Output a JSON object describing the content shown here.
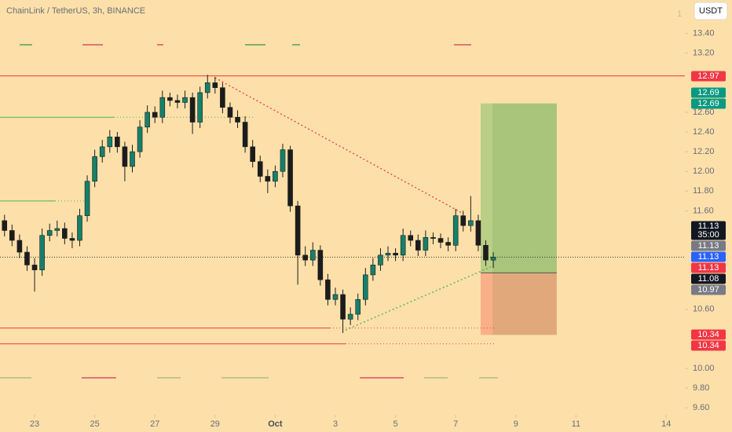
{
  "chart_data": {
    "type": "candlestick",
    "title": "ChainLink / TetherUS, 3h, BINANCE",
    "currency": "USDT",
    "corner_text": "1",
    "countdown": "35:00",
    "up_color": "#16806a",
    "down_color": "#1c1c1c",
    "xlim": [
      -1.15,
      21.62
    ],
    "ylim": [
      9.53,
      13.74
    ],
    "xticks": [
      {
        "value": 0,
        "label": "23"
      },
      {
        "value": 2,
        "label": "25"
      },
      {
        "value": 4,
        "label": "27"
      },
      {
        "value": 6,
        "label": "29"
      },
      {
        "value": 8,
        "label": "Oct"
      },
      {
        "value": 10,
        "label": "3"
      },
      {
        "value": 12,
        "label": "5"
      },
      {
        "value": 14,
        "label": "7"
      },
      {
        "value": 16,
        "label": "9"
      },
      {
        "value": 18,
        "label": "11"
      },
      {
        "value": 21,
        "label": "14"
      }
    ],
    "yticks": [
      {
        "value": 13.4,
        "label": "13.40"
      },
      {
        "value": 13.2,
        "label": "13.20"
      },
      {
        "value": 12.6,
        "label": "12.60"
      },
      {
        "value": 12.4,
        "label": "12.40"
      },
      {
        "value": 12.2,
        "label": "12.20"
      },
      {
        "value": 12.0,
        "label": "12.00"
      },
      {
        "value": 11.8,
        "label": "11.80"
      },
      {
        "value": 11.6,
        "label": "11.60"
      },
      {
        "value": 10.6,
        "label": "10.60"
      },
      {
        "value": 10.0,
        "label": "10.00"
      },
      {
        "value": 9.8,
        "label": "9.80"
      },
      {
        "value": 9.6,
        "label": "9.60"
      }
    ],
    "x": [
      -1.0,
      -0.75,
      -0.5,
      -0.25,
      0,
      0.25,
      0.5,
      0.75,
      1.0,
      1.25,
      1.5,
      1.75,
      2.0,
      2.25,
      2.5,
      2.75,
      3.0,
      3.25,
      3.5,
      3.75,
      4.0,
      4.25,
      4.5,
      4.75,
      5.0,
      5.25,
      5.5,
      5.75,
      6.0,
      6.25,
      6.5,
      6.75,
      7.0,
      7.25,
      7.5,
      7.75,
      8.0,
      8.25,
      8.5,
      8.75,
      9.0,
      9.25,
      9.5,
      9.75,
      10.0,
      10.25,
      10.5,
      10.75,
      11.0,
      11.25,
      11.5,
      11.75,
      12.0,
      12.25,
      12.5,
      12.75,
      13.0,
      13.25,
      13.5,
      13.75,
      14.0,
      14.25,
      14.5,
      14.75,
      15.0,
      15.25
    ],
    "open": [
      11.5,
      11.4,
      11.3,
      11.18,
      11.05,
      11.0,
      11.35,
      11.4,
      11.42,
      11.32,
      11.3,
      11.55,
      11.9,
      12.15,
      12.25,
      12.35,
      12.25,
      12.05,
      12.2,
      12.45,
      12.6,
      12.55,
      12.75,
      12.72,
      12.7,
      12.75,
      12.5,
      12.8,
      12.9,
      12.85,
      12.65,
      12.55,
      12.5,
      12.25,
      12.1,
      11.95,
      11.9,
      12.0,
      12.22,
      11.65,
      11.15,
      11.1,
      11.2,
      10.9,
      10.7,
      10.75,
      10.5,
      10.55,
      10.7,
      10.95,
      11.05,
      11.15,
      11.17,
      11.15,
      11.35,
      11.3,
      11.2,
      11.33,
      11.32,
      11.28,
      11.25,
      11.55,
      11.45,
      11.5,
      11.25,
      11.1
    ],
    "high": [
      11.56,
      11.46,
      11.36,
      11.24,
      11.12,
      11.42,
      11.47,
      11.5,
      11.48,
      11.38,
      11.62,
      11.96,
      12.22,
      12.32,
      12.42,
      12.4,
      12.3,
      12.27,
      12.52,
      12.67,
      12.66,
      12.82,
      12.8,
      12.78,
      12.82,
      12.8,
      12.86,
      12.98,
      12.96,
      12.9,
      12.7,
      12.62,
      12.56,
      12.32,
      12.16,
      12.02,
      12.06,
      12.28,
      12.26,
      11.7,
      11.24,
      11.28,
      11.25,
      10.96,
      10.82,
      10.8,
      10.62,
      10.76,
      11.02,
      11.12,
      11.22,
      11.24,
      11.22,
      11.42,
      11.4,
      11.36,
      11.4,
      11.38,
      11.37,
      11.33,
      11.62,
      11.6,
      11.75,
      11.56,
      11.3,
      11.18
    ],
    "low": [
      11.34,
      11.24,
      11.12,
      10.99,
      10.78,
      10.94,
      11.29,
      11.34,
      11.26,
      11.22,
      11.24,
      11.49,
      11.84,
      12.09,
      12.19,
      12.19,
      11.9,
      11.99,
      12.14,
      12.39,
      12.49,
      12.49,
      12.66,
      12.64,
      12.64,
      12.38,
      12.44,
      12.74,
      12.79,
      12.59,
      12.49,
      12.44,
      12.19,
      12.04,
      11.89,
      11.78,
      11.84,
      11.94,
      11.59,
      10.85,
      11.04,
      11.04,
      10.84,
      10.64,
      10.64,
      10.36,
      10.44,
      10.49,
      10.64,
      10.89,
      10.99,
      11.09,
      11.09,
      11.09,
      11.24,
      11.14,
      11.14,
      11.26,
      11.22,
      11.19,
      11.19,
      11.39,
      11.39,
      11.19,
      11.04,
      11.02
    ],
    "close": [
      11.4,
      11.3,
      11.18,
      11.05,
      11.0,
      11.35,
      11.4,
      11.42,
      11.32,
      11.3,
      11.55,
      11.9,
      12.15,
      12.25,
      12.35,
      12.25,
      12.05,
      12.2,
      12.45,
      12.6,
      12.55,
      12.75,
      12.72,
      12.7,
      12.75,
      12.5,
      12.8,
      12.9,
      12.85,
      12.65,
      12.55,
      12.5,
      12.25,
      12.1,
      11.95,
      11.9,
      12.0,
      12.22,
      11.65,
      11.15,
      11.1,
      11.2,
      10.9,
      10.7,
      10.75,
      10.5,
      10.55,
      10.7,
      10.95,
      11.05,
      11.15,
      11.17,
      11.15,
      11.35,
      11.3,
      11.2,
      11.33,
      11.32,
      11.28,
      11.25,
      11.55,
      11.45,
      11.5,
      11.25,
      11.1,
      11.13
    ],
    "hlines": [
      {
        "value": 12.97,
        "color": "#f23645"
      },
      {
        "value": 12.55,
        "color": "#4caf50"
      },
      {
        "value": 11.7,
        "color": "#4caf50"
      },
      {
        "value": 10.41,
        "color": "#f23645"
      },
      {
        "value": 10.25,
        "color": "#f23645"
      }
    ],
    "trendlines": [
      {
        "x": [
          6.0,
          14.26
        ],
        "y": [
          12.95,
          11.57
        ],
        "color": "#f23645"
      },
      {
        "x": [
          10.34,
          15.17
        ],
        "y": [
          10.39,
          11.03
        ],
        "color": "#4caf50"
      }
    ],
    "position": {
      "x": [
        14.83,
        17.36
      ],
      "target": 12.69,
      "entry": 10.97,
      "stop": 10.34
    },
    "price_labels": [
      {
        "value": 12.97,
        "color": "#f23645"
      },
      {
        "value": 12.69,
        "color": "#089981"
      },
      {
        "value": 12.69,
        "color": "#089981"
      },
      {
        "value": 11.13,
        "color": "#131722"
      },
      {
        "value": 11.13,
        "color": "#787b86"
      },
      {
        "value": 11.13,
        "color": "#2962ff"
      },
      {
        "value": 11.13,
        "color": "#f23645"
      },
      {
        "value": 11.08,
        "color": "#131722"
      },
      {
        "value": 10.97,
        "color": "#787b86"
      },
      {
        "value": 10.34,
        "color": "#f23645"
      },
      {
        "value": 10.34,
        "color": "#f23645"
      }
    ]
  }
}
